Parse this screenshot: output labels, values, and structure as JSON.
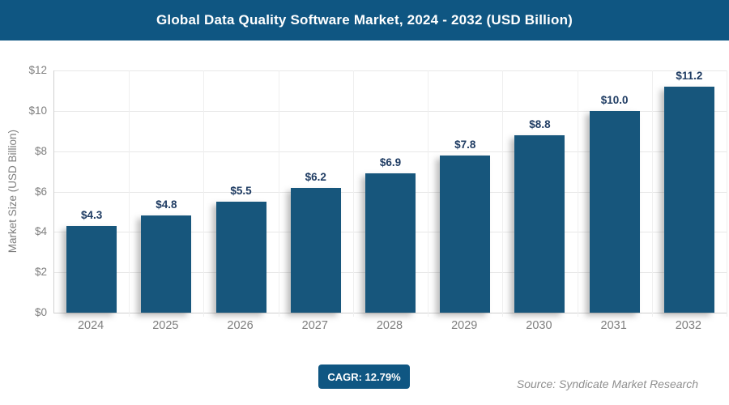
{
  "header": {
    "title": "Global Data Quality Software Market, 2024 - 2032 (USD Billion)"
  },
  "chart_data": {
    "type": "bar",
    "title": "Global Data Quality Software Market, 2024 - 2032 (USD Billion)",
    "categories": [
      "2024",
      "2025",
      "2026",
      "2027",
      "2028",
      "2029",
      "2030",
      "2031",
      "2032"
    ],
    "values": [
      4.3,
      4.8,
      5.5,
      6.2,
      6.9,
      7.8,
      8.8,
      10.0,
      11.2
    ],
    "value_labels": [
      "$4.3",
      "$4.8",
      "$5.5",
      "$6.2",
      "$6.9",
      "$7.8",
      "$8.8",
      "$10.0",
      "$11.2"
    ],
    "xlabel": "",
    "ylabel": "Market Size (USD Billion)",
    "ylim": [
      0,
      12
    ],
    "ytick_values": [
      0,
      2,
      4,
      6,
      8,
      10,
      12
    ],
    "ytick_labels": [
      "$0",
      "$2",
      "$4",
      "$6",
      "$8",
      "$10",
      "$12"
    ],
    "grid": true,
    "legend": "none",
    "bar_color": "#17567C",
    "value_label_color": "#1F3C63"
  },
  "footer": {
    "cagr_label": "CAGR: 12.79%",
    "source": "Source: Syndicate Market Research"
  },
  "colors": {
    "title_bar_bg": "#0F5682",
    "title_text": "#FFFFFF",
    "badge_bg": "#0F5682",
    "axis_text": "#7F7F7F",
    "gridline": "#E7E7E7",
    "vertical_gridline": "#EFEFEF",
    "axis_line": "#D0D0D0",
    "source_text": "#8F8F8F"
  }
}
